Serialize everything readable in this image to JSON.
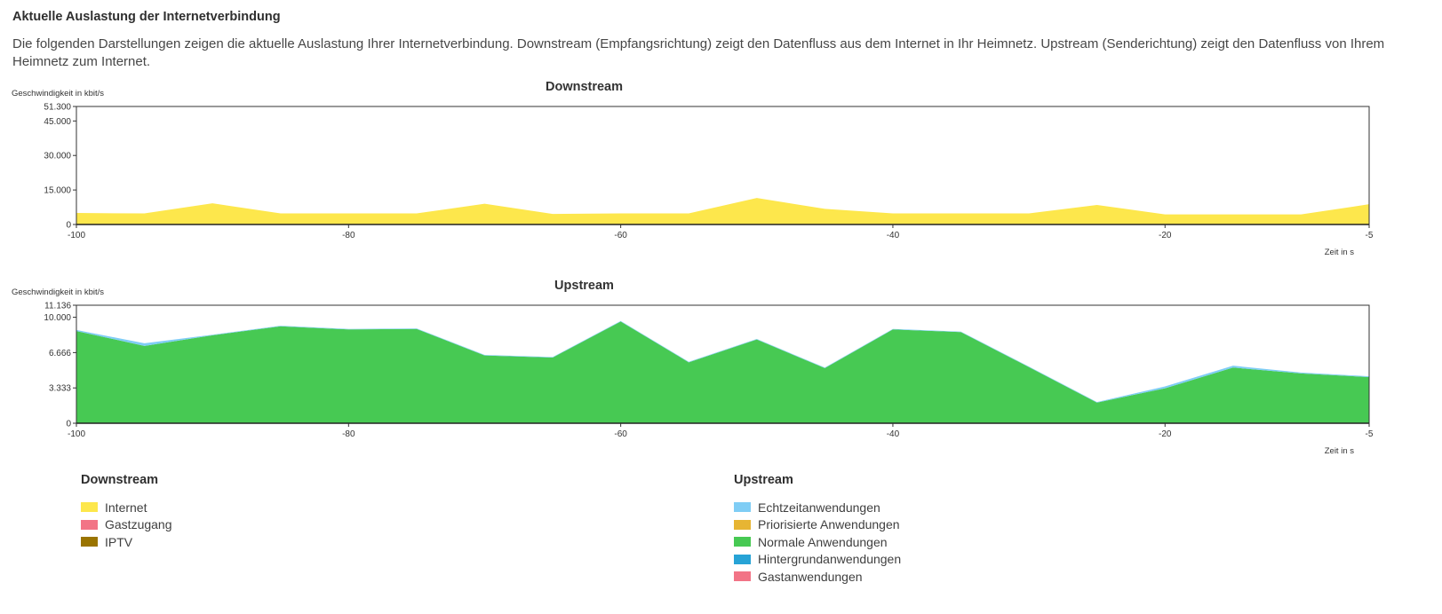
{
  "page": {
    "heading": "Aktuelle Auslastung der Internetverbindung",
    "description": "Die folgenden Darstellungen zeigen die aktuelle Auslastung Ihrer Internetverbindung. Downstream (Empfangsrichtung) zeigt den Datenfluss aus dem Internet in Ihr Heimnetz. Upstream (Senderichtung) zeigt den Datenfluss von Ihrem Heimnetz zum Internet."
  },
  "chart_data": [
    {
      "type": "area",
      "title": "Downstream",
      "ylabel": "Geschwindigkeit in kbit/s",
      "xlabel": "Zeit in s",
      "xlim": [
        -100,
        -5
      ],
      "ylim": [
        0,
        51300
      ],
      "yticks": [
        "51.300",
        "45.000",
        "30.000",
        "15.000",
        "0"
      ],
      "ytick_values": [
        51300,
        45000,
        30000,
        15000,
        0
      ],
      "xticks": [
        -100,
        -80,
        -60,
        -40,
        -20,
        -5
      ],
      "x": [
        -100,
        -95,
        -90,
        -85,
        -80,
        -75,
        -70,
        -65,
        -60,
        -55,
        -50,
        -45,
        -40,
        -35,
        -30,
        -25,
        -20,
        -15,
        -10,
        -5
      ],
      "series": [
        {
          "name": "Internet",
          "color": "#fde74c",
          "values": [
            5000,
            4800,
            9200,
            4800,
            4800,
            4800,
            9000,
            4600,
            4800,
            4800,
            11500,
            6800,
            4800,
            4800,
            4800,
            8500,
            4400,
            4400,
            4400,
            8800
          ]
        }
      ]
    },
    {
      "type": "area",
      "title": "Upstream",
      "ylabel": "Geschwindigkeit in kbit/s",
      "xlabel": "Zeit in s",
      "xlim": [
        -100,
        -5
      ],
      "ylim": [
        0,
        11136
      ],
      "yticks": [
        "11.136",
        "10.000",
        "6.666",
        "3.333",
        "0"
      ],
      "ytick_values": [
        11136,
        10000,
        6666,
        3333,
        0
      ],
      "xticks": [
        -100,
        -80,
        -60,
        -40,
        -20,
        -5
      ],
      "x": [
        -100,
        -95,
        -90,
        -85,
        -80,
        -75,
        -70,
        -65,
        -60,
        -55,
        -50,
        -45,
        -40,
        -35,
        -30,
        -25,
        -20,
        -15,
        -10,
        -5
      ],
      "series": [
        {
          "name": "Normale Anwendungen",
          "color": "#47c953",
          "values": [
            8700,
            7300,
            8300,
            9150,
            8850,
            8900,
            6400,
            6200,
            9600,
            5750,
            7900,
            5200,
            8850,
            8600,
            5300,
            1950,
            3300,
            5250,
            4700,
            4350
          ]
        },
        {
          "name": "Echtzeitanwendungen",
          "color": "#7fcdf5",
          "values": [
            100,
            250,
            50,
            50,
            50,
            50,
            50,
            50,
            50,
            50,
            50,
            50,
            50,
            50,
            50,
            50,
            180,
            180,
            80,
            80
          ]
        }
      ]
    }
  ],
  "legend": {
    "downstream": {
      "title": "Downstream",
      "items": [
        {
          "label": "Internet",
          "color": "#fde74c"
        },
        {
          "label": "Gastzugang",
          "color": "#f27486"
        },
        {
          "label": "IPTV",
          "color": "#9a7400"
        }
      ]
    },
    "upstream": {
      "title": "Upstream",
      "items": [
        {
          "label": "Echtzeitanwendungen",
          "color": "#7fcdf5"
        },
        {
          "label": "Priorisierte Anwendungen",
          "color": "#e7b533"
        },
        {
          "label": "Normale Anwendungen",
          "color": "#47c953"
        },
        {
          "label": "Hintergrundanwendungen",
          "color": "#27a3d6"
        },
        {
          "label": "Gastanwendungen",
          "color": "#f27486"
        }
      ]
    }
  }
}
